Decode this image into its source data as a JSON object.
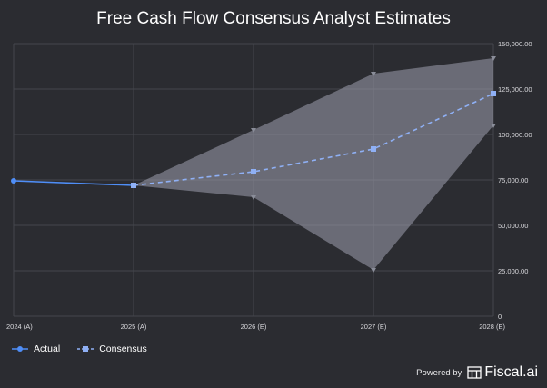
{
  "chart_data": {
    "type": "line",
    "title": "Free Cash Flow Consensus Analyst Estimates",
    "categories": [
      "2024 (A)",
      "2025 (A)",
      "2026 (E)",
      "2027 (E)",
      "2028 (E)"
    ],
    "series": [
      {
        "name": "Actual",
        "values": [
          74500,
          72000,
          null,
          null,
          null
        ],
        "color": "#4f8ef7",
        "style": "solid"
      },
      {
        "name": "Consensus",
        "values": [
          null,
          72000,
          79500,
          92000,
          122500
        ],
        "color": "#8fb0f5",
        "style": "dashed"
      }
    ],
    "range": {
      "high": [
        null,
        72000,
        102500,
        133500,
        142000
      ],
      "low": [
        null,
        72000,
        65500,
        25500,
        105000
      ],
      "color": "#9ea1ae"
    },
    "y_ticks": [
      "150,000.00",
      "125,000.00",
      "100,000.00",
      "75,000.00",
      "50,000.00",
      "25,000.00",
      "0"
    ],
    "ylim": [
      0,
      150000
    ],
    "y_axis_side": "right",
    "grid": true,
    "legend_placement": "bottom-left"
  },
  "footer": {
    "powered_by": "Powered by",
    "brand": "Fiscal.ai"
  },
  "colors": {
    "background": "#2b2c31",
    "grid": "#45464d"
  }
}
